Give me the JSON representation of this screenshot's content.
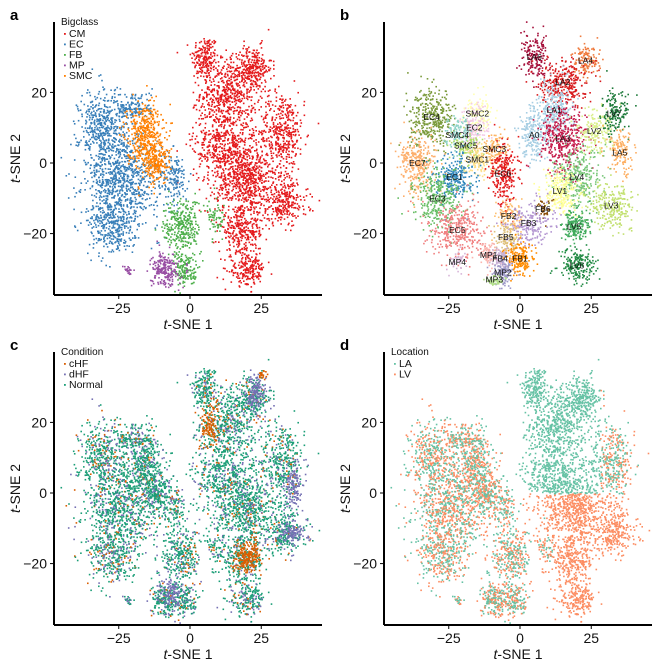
{
  "chart_data": [
    {
      "id": "a",
      "type": "scatter",
      "panel_letter": "a",
      "xlabel": "t-SNE 1",
      "ylabel": "t-SNE 2",
      "xlim": [
        -44,
        44
      ],
      "ylim": [
        -37,
        39
      ],
      "xticks": [
        -25,
        0,
        25
      ],
      "yticks": [
        -20,
        0,
        20
      ],
      "legend": {
        "title": "Bigclass",
        "position": "top-left",
        "entries": [
          {
            "label": "CM",
            "color": "#e41a1c"
          },
          {
            "label": "EC",
            "color": "#377eb8"
          },
          {
            "label": "FB",
            "color": "#4daf4a"
          },
          {
            "label": "MP",
            "color": "#984ea3"
          },
          {
            "label": "SMC",
            "color": "#ff7f00"
          }
        ]
      },
      "clusters": [
        {
          "cls": "CM",
          "x": 5,
          "y": 30,
          "sx": 3,
          "sy": 4,
          "n": 180
        },
        {
          "cls": "CM",
          "x": 13,
          "y": 20,
          "sx": 6,
          "sy": 6,
          "n": 500
        },
        {
          "cls": "CM",
          "x": 22,
          "y": 27,
          "sx": 4,
          "sy": 4,
          "n": 250
        },
        {
          "cls": "CM",
          "x": 32,
          "y": 9,
          "sx": 5,
          "sy": 7,
          "n": 400
        },
        {
          "cls": "CM",
          "x": 12,
          "y": 5,
          "sx": 7,
          "sy": 7,
          "n": 550
        },
        {
          "cls": "CM",
          "x": 20,
          "y": -5,
          "sx": 7,
          "sy": 6,
          "n": 600
        },
        {
          "cls": "CM",
          "x": 33,
          "y": -11,
          "sx": 5,
          "sy": 4,
          "n": 250
        },
        {
          "cls": "CM",
          "x": 18,
          "y": -19,
          "sx": 5,
          "sy": 4,
          "n": 300
        },
        {
          "cls": "CM",
          "x": 20,
          "y": -30,
          "sx": 4,
          "sy": 3,
          "n": 200
        },
        {
          "cls": "EC",
          "x": -31,
          "y": 10,
          "sx": 5,
          "sy": 7,
          "n": 450
        },
        {
          "cls": "EC",
          "x": -24,
          "y": -5,
          "sx": 8,
          "sy": 8,
          "n": 800
        },
        {
          "cls": "EC",
          "x": -28,
          "y": -18,
          "sx": 5,
          "sy": 5,
          "n": 300
        },
        {
          "cls": "EC",
          "x": -20,
          "y": 16,
          "sx": 4,
          "sy": 3,
          "n": 150
        },
        {
          "cls": "EC",
          "x": -6,
          "y": -4,
          "sx": 3,
          "sy": 5,
          "n": 150
        },
        {
          "cls": "SMC",
          "x": -16,
          "y": 8,
          "sx": 4,
          "sy": 6,
          "n": 450
        },
        {
          "cls": "SMC",
          "x": -12,
          "y": 0,
          "sx": 3,
          "sy": 3,
          "n": 150
        },
        {
          "cls": "FB",
          "x": -3,
          "y": -18,
          "sx": 4,
          "sy": 5,
          "n": 300
        },
        {
          "cls": "FB",
          "x": -2,
          "y": -30,
          "sx": 3,
          "sy": 3,
          "n": 150
        },
        {
          "cls": "FB",
          "x": 9,
          "y": -16,
          "sx": 2,
          "sy": 3,
          "n": 60
        },
        {
          "cls": "MP",
          "x": -9,
          "y": -30,
          "sx": 3,
          "sy": 3,
          "n": 220
        },
        {
          "cls": "MP",
          "x": -22,
          "y": -30,
          "sx": 1,
          "sy": 1,
          "n": 20
        }
      ]
    },
    {
      "id": "b",
      "type": "scatter",
      "panel_letter": "b",
      "xlabel": "t-SNE 1",
      "ylabel": "t-SNE 2",
      "xlim": [
        -44,
        44
      ],
      "ylim": [
        -37,
        39
      ],
      "xticks": [
        -25,
        0,
        25
      ],
      "yticks": [
        -20,
        0,
        20
      ],
      "clusters": [
        {
          "label": "LA6",
          "x": 5,
          "y": 30,
          "sx": 3,
          "sy": 4,
          "n": 170,
          "color": "#a50f3a"
        },
        {
          "label": "LA4",
          "x": 23,
          "y": 29,
          "sx": 3,
          "sy": 3,
          "n": 130,
          "color": "#ef7b3e"
        },
        {
          "label": "LA2",
          "x": 15,
          "y": 23,
          "sx": 5,
          "sy": 4,
          "n": 300,
          "color": "#d7191c"
        },
        {
          "label": "LA1",
          "x": 12,
          "y": 15,
          "sx": 4,
          "sy": 5,
          "n": 280,
          "color": "#a6cee3"
        },
        {
          "label": "A0",
          "x": 5,
          "y": 8,
          "sx": 4,
          "sy": 5,
          "n": 200,
          "color": "#a6cee3"
        },
        {
          "label": "LA3",
          "x": 15,
          "y": 7,
          "sx": 5,
          "sy": 6,
          "n": 400,
          "color": "#c51b4a"
        },
        {
          "label": "LV2",
          "x": 26,
          "y": 9,
          "sx": 4,
          "sy": 4,
          "n": 180,
          "color": "#d9ef8b"
        },
        {
          "label": "LV7",
          "x": 33,
          "y": 14,
          "sx": 3,
          "sy": 4,
          "n": 150,
          "color": "#1a7837"
        },
        {
          "label": "LA5",
          "x": 35,
          "y": 3,
          "sx": 3,
          "sy": 4,
          "n": 130,
          "color": "#fdae61"
        },
        {
          "label": "EC4",
          "x": -31,
          "y": 13,
          "sx": 5,
          "sy": 5,
          "n": 350,
          "color": "#7a9a3a"
        },
        {
          "label": "SMC2",
          "x": -15,
          "y": 14,
          "sx": 3,
          "sy": 3,
          "n": 120,
          "color": "#ffffb3"
        },
        {
          "label": "EC2",
          "x": -16,
          "y": 10,
          "sx": 3,
          "sy": 4,
          "n": 150,
          "color": "#f4cae4"
        },
        {
          "label": "SMC4",
          "x": -22,
          "y": 8,
          "sx": 3,
          "sy": 3,
          "n": 120,
          "color": "#8dd3c7"
        },
        {
          "label": "SMC5",
          "x": -19,
          "y": 5,
          "sx": 3,
          "sy": 3,
          "n": 100,
          "color": "#b3de69"
        },
        {
          "label": "SMC3",
          "x": -9,
          "y": 4,
          "sx": 3,
          "sy": 3,
          "n": 120,
          "color": "#fdb462"
        },
        {
          "label": "SMC1",
          "x": -15,
          "y": 1,
          "sx": 3,
          "sy": 3,
          "n": 120,
          "color": "#fee08b"
        },
        {
          "label": "EC7",
          "x": -36,
          "y": 0,
          "sx": 4,
          "sy": 5,
          "n": 300,
          "color": "#fdae6b"
        },
        {
          "label": "EC1",
          "x": -23,
          "y": -4,
          "sx": 4,
          "sy": 4,
          "n": 250,
          "color": "#3288bd"
        },
        {
          "label": "EC6",
          "x": -6,
          "y": -3,
          "sx": 3,
          "sy": 6,
          "n": 250,
          "color": "#e31a1c"
        },
        {
          "label": "LV4",
          "x": 20,
          "y": -4,
          "sx": 5,
          "sy": 5,
          "n": 300,
          "color": "#78c679"
        },
        {
          "label": "LV1",
          "x": 14,
          "y": -8,
          "sx": 4,
          "sy": 4,
          "n": 250,
          "color": "#ffff99"
        },
        {
          "label": "EC3",
          "x": -29,
          "y": -10,
          "sx": 5,
          "sy": 5,
          "n": 300,
          "color": "#66bd63"
        },
        {
          "label": "FB2",
          "x": -4,
          "y": -15,
          "sx": 3,
          "sy": 3,
          "n": 100,
          "color": "#fdbf6f"
        },
        {
          "label": "FB6",
          "x": 8,
          "y": -13,
          "sx": 2,
          "sy": 2,
          "n": 40,
          "color": "#8c510a"
        },
        {
          "label": "FB3",
          "x": 3,
          "y": -17,
          "sx": 5,
          "sy": 4,
          "n": 200,
          "color": "#b497d1"
        },
        {
          "label": "LV3",
          "x": 32,
          "y": -12,
          "sx": 5,
          "sy": 4,
          "n": 250,
          "color": "#c2e06f"
        },
        {
          "label": "EC5",
          "x": -22,
          "y": -19,
          "sx": 6,
          "sy": 5,
          "n": 350,
          "color": "#f08080"
        },
        {
          "label": "LV5",
          "x": 19,
          "y": -18,
          "sx": 3,
          "sy": 3,
          "n": 200,
          "color": "#41ab5d"
        },
        {
          "label": "FB5",
          "x": -5,
          "y": -21,
          "sx": 3,
          "sy": 3,
          "n": 100,
          "color": "#dfc27d"
        },
        {
          "label": "MP1",
          "x": -11,
          "y": -26,
          "sx": 2,
          "sy": 2,
          "n": 100,
          "color": "#fbb4ae"
        },
        {
          "label": "FB4",
          "x": -7,
          "y": -27,
          "sx": 2,
          "sy": 2,
          "n": 100,
          "color": "#cab2d6"
        },
        {
          "label": "FB1",
          "x": 0,
          "y": -27,
          "sx": 3,
          "sy": 3,
          "n": 180,
          "color": "#ff8c00"
        },
        {
          "label": "MP4",
          "x": -22,
          "y": -28,
          "sx": 2,
          "sy": 2,
          "n": 40,
          "color": "#d7b5d8"
        },
        {
          "label": "MP2",
          "x": -6,
          "y": -31,
          "sx": 2,
          "sy": 2,
          "n": 120,
          "color": "#9e9ac8"
        },
        {
          "label": "MP3",
          "x": -9,
          "y": -33,
          "sx": 2,
          "sy": 1,
          "n": 60,
          "color": "#b2df8a"
        },
        {
          "label": "LV6",
          "x": 20,
          "y": -29,
          "sx": 4,
          "sy": 3,
          "n": 200,
          "color": "#238b45"
        }
      ]
    },
    {
      "id": "c",
      "type": "scatter",
      "panel_letter": "c",
      "xlabel": "t-SNE 1",
      "ylabel": "t-SNE 2",
      "xlim": [
        -44,
        44
      ],
      "ylim": [
        -37,
        39
      ],
      "xticks": [
        -25,
        0,
        25
      ],
      "yticks": [
        -20,
        0,
        20
      ],
      "legend": {
        "title": "Condition",
        "position": "top-left",
        "entries": [
          {
            "label": "cHF",
            "color": "#d95f02"
          },
          {
            "label": "dHF",
            "color": "#7570b3"
          },
          {
            "label": "Normal",
            "color": "#1b9e77"
          }
        ]
      },
      "mix": {
        "cHF": 0.08,
        "dHF": 0.2,
        "Normal": 0.72
      },
      "hotspots": [
        {
          "cls": "cHF",
          "x": 7,
          "y": 20,
          "sx": 2,
          "sy": 4,
          "n": 120
        },
        {
          "cls": "cHF",
          "x": 20,
          "y": -18,
          "sx": 3,
          "sy": 3,
          "n": 220
        },
        {
          "cls": "cHF",
          "x": 25,
          "y": 34,
          "sx": 1,
          "sy": 1,
          "n": 20
        },
        {
          "cls": "dHF",
          "x": 23,
          "y": 29,
          "sx": 2,
          "sy": 3,
          "n": 120
        },
        {
          "cls": "dHF",
          "x": 36,
          "y": 3,
          "sx": 2,
          "sy": 4,
          "n": 120
        },
        {
          "cls": "dHF",
          "x": 36,
          "y": -11,
          "sx": 3,
          "sy": 2,
          "n": 100
        },
        {
          "cls": "dHF",
          "x": -7,
          "y": -28,
          "sx": 2,
          "sy": 3,
          "n": 100
        }
      ]
    },
    {
      "id": "d",
      "type": "scatter",
      "panel_letter": "d",
      "xlabel": "t-SNE 1",
      "ylabel": "t-SNE 2",
      "xlim": [
        -44,
        44
      ],
      "ylim": [
        -37,
        39
      ],
      "xticks": [
        -25,
        0,
        25
      ],
      "yticks": [
        -20,
        0,
        20
      ],
      "legend": {
        "title": "Location",
        "position": "top-left",
        "entries": [
          {
            "label": "LA",
            "color": "#66c2a5"
          },
          {
            "label": "LV",
            "color": "#fc8d62"
          }
        ]
      },
      "rule": "CM clusters at y > 0 (left of x=28) are LA; CM clusters at y <= 0 are LV; non-CM cells mixed ~50/50"
    }
  ]
}
